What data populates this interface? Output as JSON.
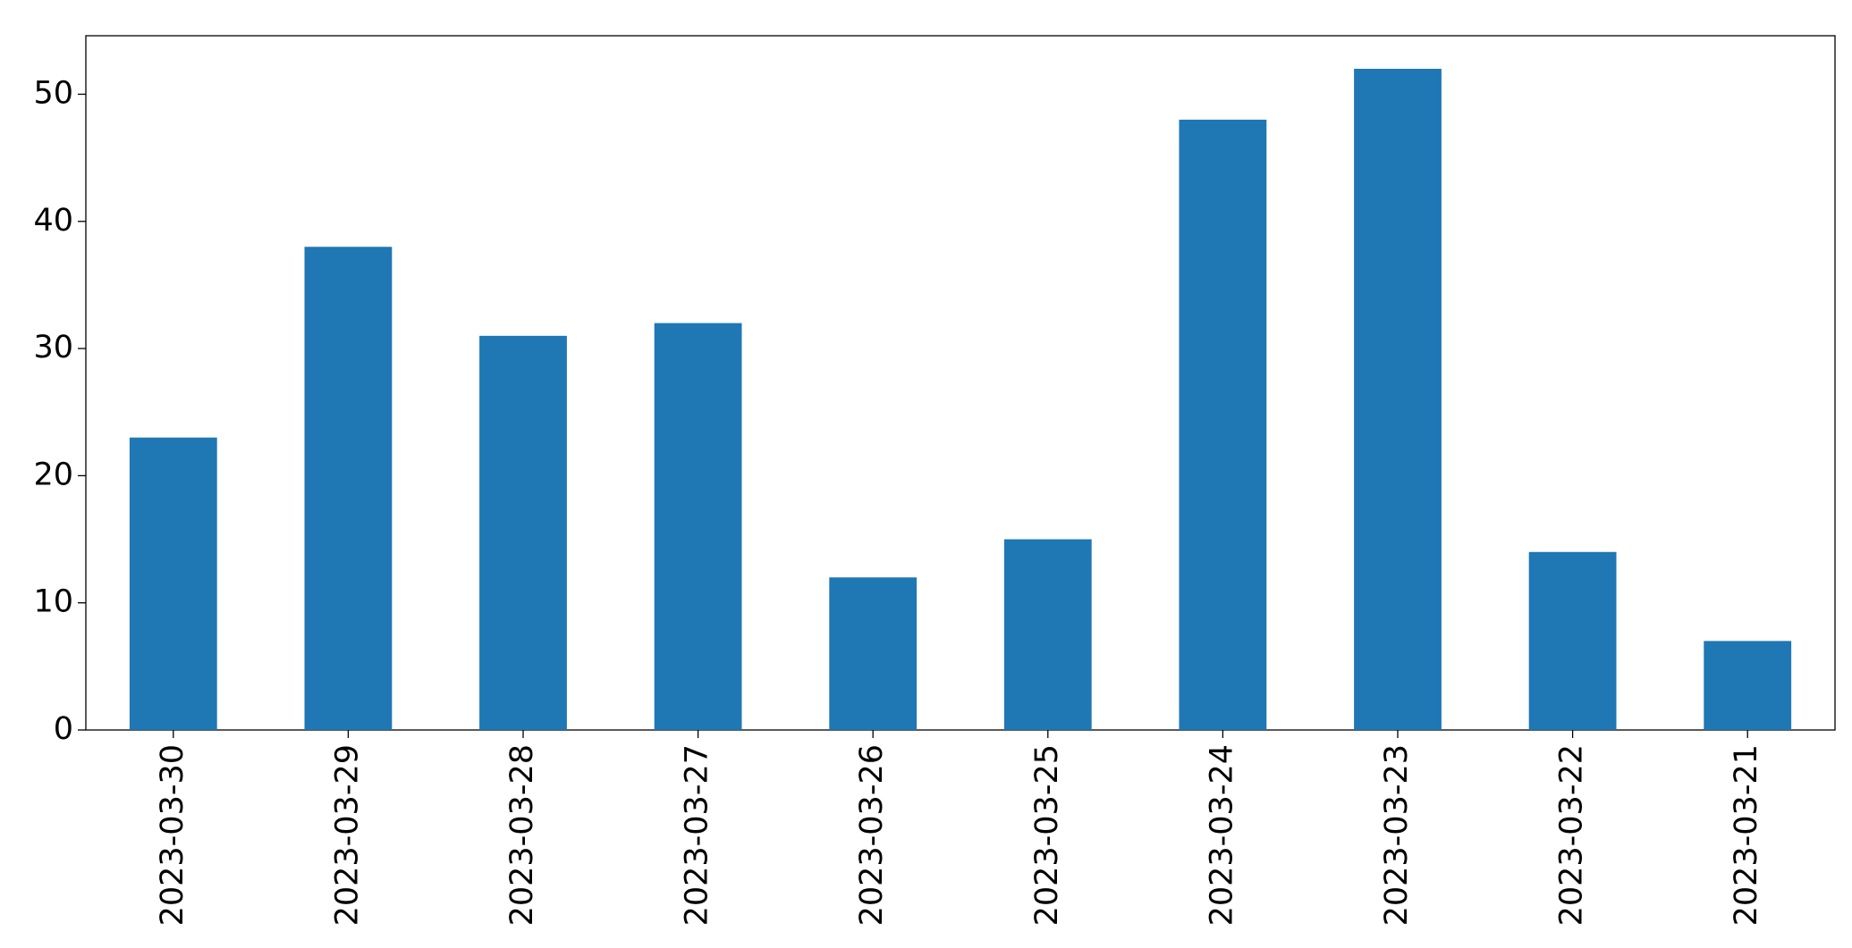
{
  "chart_data": {
    "type": "bar",
    "categories": [
      "2023-03-30",
      "2023-03-29",
      "2023-03-28",
      "2023-03-27",
      "2023-03-26",
      "2023-03-25",
      "2023-03-24",
      "2023-03-23",
      "2023-03-22",
      "2023-03-21"
    ],
    "values": [
      23,
      38,
      31,
      32,
      12,
      15,
      48,
      52,
      14,
      7
    ],
    "color": "#1f77b4",
    "ylim": [
      0,
      54.6
    ],
    "yticks": [
      0,
      10,
      20,
      30,
      40,
      50
    ],
    "grid": false
  }
}
